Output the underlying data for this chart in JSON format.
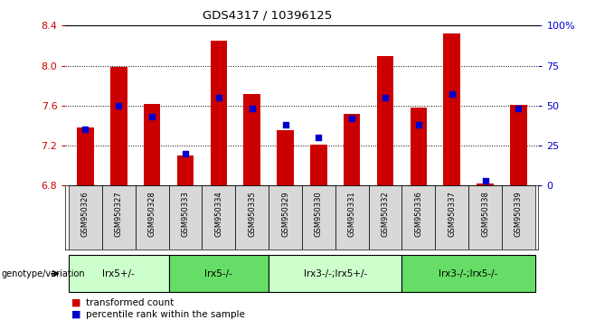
{
  "title": "GDS4317 / 10396125",
  "samples": [
    "GSM950326",
    "GSM950327",
    "GSM950328",
    "GSM950333",
    "GSM950334",
    "GSM950335",
    "GSM950329",
    "GSM950330",
    "GSM950331",
    "GSM950332",
    "GSM950336",
    "GSM950337",
    "GSM950338",
    "GSM950339"
  ],
  "red_values": [
    7.38,
    7.99,
    7.62,
    7.1,
    8.25,
    7.72,
    7.35,
    7.21,
    7.52,
    8.1,
    7.58,
    8.32,
    6.82,
    7.61
  ],
  "blue_values": [
    35,
    50,
    43,
    20,
    55,
    48,
    38,
    30,
    42,
    55,
    38,
    57,
    3,
    48
  ],
  "ylim_left": [
    6.8,
    8.4
  ],
  "ylim_right": [
    0,
    100
  ],
  "yticks_left": [
    6.8,
    7.2,
    7.6,
    8.0,
    8.4
  ],
  "yticks_right": [
    0,
    25,
    50,
    75,
    100
  ],
  "ytick_labels_right": [
    "0",
    "25",
    "50",
    "75",
    "100%"
  ],
  "bar_color": "#cc0000",
  "dot_color": "#0000cc",
  "bar_bottom": 6.8,
  "groups": [
    {
      "label": "lrx5+/-",
      "start": 0,
      "end": 3,
      "color": "#ccffcc"
    },
    {
      "label": "lrx5-/-",
      "start": 3,
      "end": 6,
      "color": "#66dd66"
    },
    {
      "label": "lrx3-/-;lrx5+/-",
      "start": 6,
      "end": 10,
      "color": "#ccffcc"
    },
    {
      "label": "lrx3-/-;lrx5-/-",
      "start": 10,
      "end": 14,
      "color": "#66dd66"
    }
  ],
  "group_label": "genotype/variation",
  "legend_red": "transformed count",
  "legend_blue": "percentile rank within the sample",
  "tick_color_left": "#cc0000",
  "tick_color_right": "#0000cc",
  "sample_box_color": "#d8d8d8",
  "bar_width": 0.5
}
